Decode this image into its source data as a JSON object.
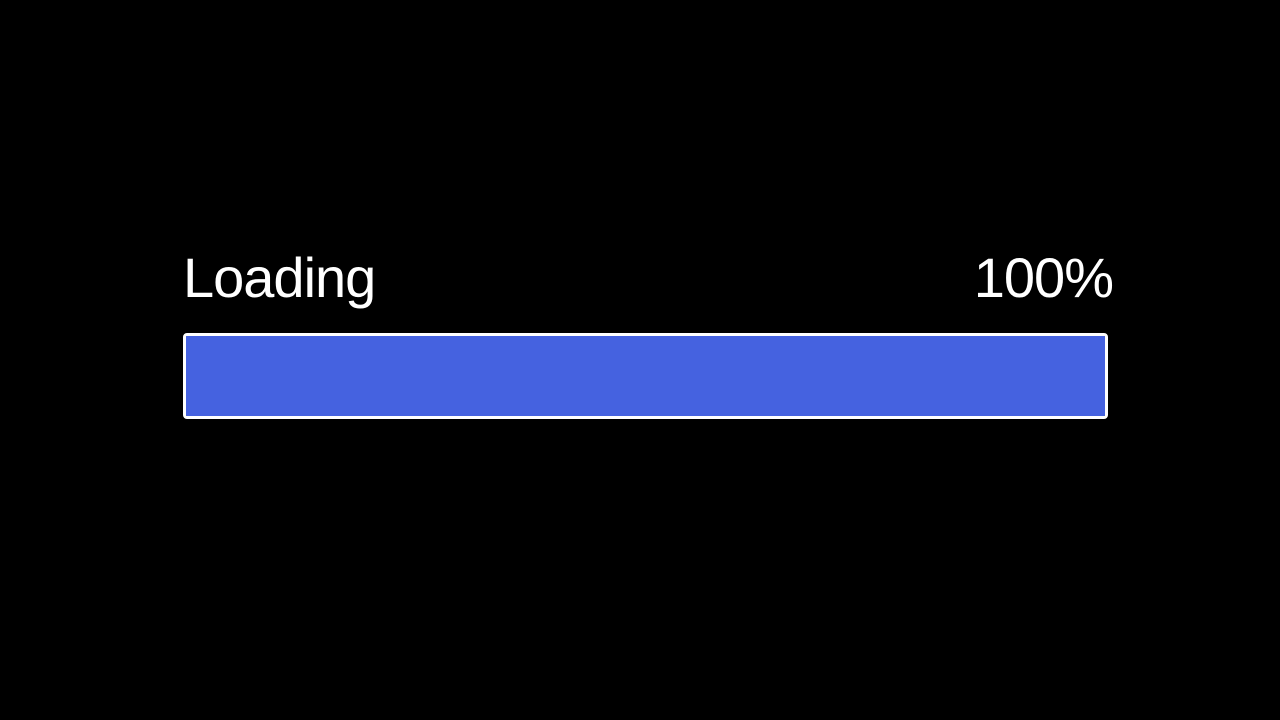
{
  "loader": {
    "label": "Loading",
    "percent_text": "100%",
    "progress_fraction": 1.0
  },
  "colors": {
    "background": "#000000",
    "text": "#ffffff",
    "bar_fill": "#4562e0",
    "bar_border": "#ffffff"
  }
}
